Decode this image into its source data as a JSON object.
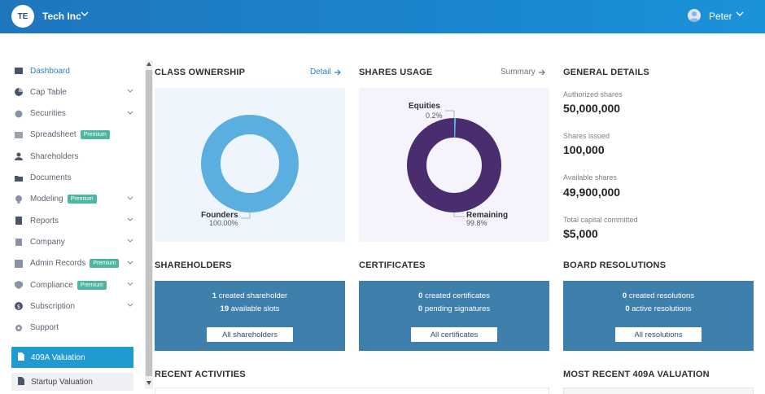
{
  "topbar": {
    "company_initials": "TE",
    "company_name": "Tech Inc",
    "user_name": "Peter"
  },
  "sidebar": {
    "items": [
      {
        "label": "Dashboard",
        "icon": "dashboard-icon",
        "active": true
      },
      {
        "label": "Cap Table",
        "icon": "pie-icon",
        "chevron": true
      },
      {
        "label": "Securities",
        "icon": "securities-icon",
        "chevron": true
      },
      {
        "label": "Spreadsheet",
        "icon": "spreadsheet-icon",
        "premium": "Premium"
      },
      {
        "label": "Shareholders",
        "icon": "person-icon"
      },
      {
        "label": "Documents",
        "icon": "folder-icon"
      },
      {
        "label": "Modeling",
        "icon": "bulb-icon",
        "premium": "Premium",
        "chevron": true
      },
      {
        "label": "Reports",
        "icon": "report-icon",
        "chevron": true
      },
      {
        "label": "Company",
        "icon": "building-icon",
        "chevron": true
      },
      {
        "label": "Admin Records",
        "icon": "records-icon",
        "premium": "Premium",
        "chevron": true
      },
      {
        "label": "Compliance",
        "icon": "shield-icon",
        "premium": "Premium",
        "chevron": true
      },
      {
        "label": "Subscription",
        "icon": "dollar-icon",
        "chevron": true
      },
      {
        "label": "Support",
        "icon": "gear-icon"
      }
    ],
    "valuation_409a": "409A Valuation",
    "startup_valuation": "Startup Valuation"
  },
  "class_ownership": {
    "title": "CLASS OWNERSHIP",
    "link": "Detail",
    "chart_data": {
      "type": "pie",
      "categories": [
        "Founders"
      ],
      "values": [
        100.0
      ],
      "labels": [
        "100.00%"
      ],
      "colors": [
        "#5baee0"
      ]
    }
  },
  "shares_usage": {
    "title": "SHARES USAGE",
    "link": "Summary",
    "chart_data": {
      "type": "pie",
      "categories": [
        "Equities",
        "Remaining"
      ],
      "values": [
        0.2,
        99.8
      ],
      "labels": [
        "0.2%",
        "99.8%"
      ],
      "colors": [
        "#5baee0",
        "#4a2d6e"
      ]
    }
  },
  "general_details": {
    "title": "GENERAL DETAILS",
    "rows": [
      {
        "label": "Authorized shares",
        "value": "50,000,000"
      },
      {
        "label": "Shares issued",
        "value": "100,000"
      },
      {
        "label": "Available shares",
        "value": "49,900,000"
      },
      {
        "label": "Total capital committed",
        "value": "$5,000"
      }
    ]
  },
  "shareholders": {
    "title": "SHAREHOLDERS",
    "line1_num": "1",
    "line1_text": " created shareholder",
    "line2_num": "19",
    "line2_text": " available slots",
    "button": "All shareholders"
  },
  "certificates": {
    "title": "CERTIFICATES",
    "line1_num": "0",
    "line1_text": " created certificates",
    "line2_num": "0",
    "line2_text": " pending signatures",
    "button": "All certificates"
  },
  "board_resolutions": {
    "title": "BOARD RESOLUTIONS",
    "line1_num": "0",
    "line1_text": " created resolutions",
    "line2_num": "0",
    "line2_text": " active resolutions",
    "button": "All resolutions"
  },
  "recent_activities": {
    "title": "RECENT ACTIVITIES"
  },
  "recent_409a": {
    "title": "MOST RECENT 409A VALUATION"
  },
  "colors": {
    "accent": "#1f9bd0",
    "card": "#3f7fac",
    "premium": "#4db6a3",
    "purple": "#4a2d6e"
  }
}
